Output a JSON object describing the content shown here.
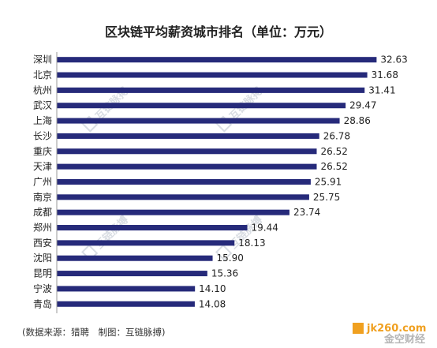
{
  "chart_data": {
    "type": "bar",
    "orientation": "horizontal",
    "title": "区块链平均薪资城市排名（单位：万元）",
    "categories": [
      "深圳",
      "北京",
      "杭州",
      "武汉",
      "上海",
      "长沙",
      "重庆",
      "天津",
      "广州",
      "南京",
      "成都",
      "郑州",
      "西安",
      "沈阳",
      "昆明",
      "宁波",
      "青岛"
    ],
    "values": [
      32.63,
      31.68,
      31.41,
      29.47,
      28.86,
      26.78,
      26.52,
      26.52,
      25.91,
      25.75,
      23.74,
      19.44,
      18.13,
      15.9,
      15.36,
      14.1,
      14.08
    ],
    "value_labels": [
      "32.63",
      "31.68",
      "31.41",
      "29.47",
      "28.86",
      "26.78",
      "26.52",
      "26.52",
      "25.91",
      "25.75",
      "23.74",
      "19.44",
      "18.13",
      "15.90",
      "15.36",
      "14.10",
      "14.08"
    ],
    "xlim": [
      0,
      36
    ],
    "grid": false,
    "legend": "none",
    "bar_color": "#262a7a"
  },
  "source_note": "(数据来源：猎聘　制图：互链脉搏)",
  "watermark_text": "互链脉搏",
  "logo_text": "jk260.com",
  "logo_subtext": "金空财经",
  "colors": {
    "axis": "#999999",
    "watermark": "#d9dde3",
    "logo_orange": "#f0a020",
    "logo_gray": "#b5b5b5"
  }
}
